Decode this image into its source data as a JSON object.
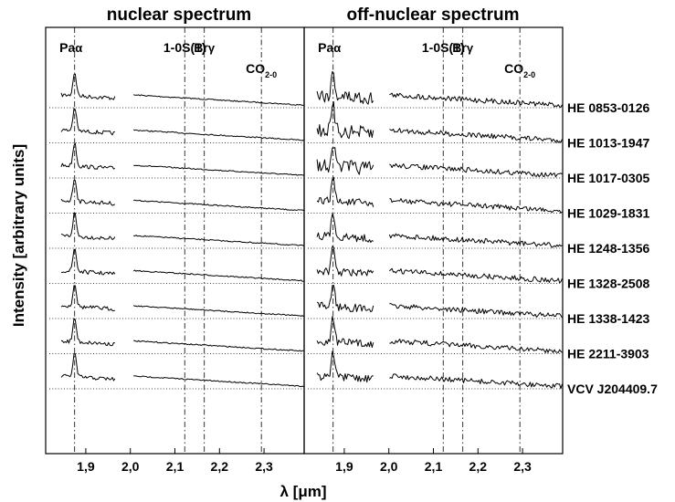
{
  "chart_data": {
    "type": "line",
    "panels": [
      {
        "title": "nuclear spectrum"
      },
      {
        "title": "off-nuclear spectrum"
      }
    ],
    "ylabel": "Intensity [arbitrary units]",
    "xlabel": "λ [μm]",
    "x_ticks": [
      "1,9",
      "2,0",
      "2,1",
      "2,2",
      "2,3"
    ],
    "x_tick_values": [
      1.9,
      2.0,
      2.1,
      2.2,
      2.3
    ],
    "xlim": [
      1.81,
      2.39
    ],
    "lines": [
      {
        "label": "Pa",
        "sub": "α",
        "x": 1.875
      },
      {
        "label": "1-0S(1)",
        "x": 2.122
      },
      {
        "label": "Br",
        "sub": "γ",
        "x": 2.166
      },
      {
        "label": "CO",
        "sub": "2-0",
        "x": 2.294
      }
    ],
    "series": [
      {
        "name": "HE 0853-0126"
      },
      {
        "name": "HE 1013-1947"
      },
      {
        "name": "HE 1017-0305"
      },
      {
        "name": "HE 1029-1831"
      },
      {
        "name": "HE 1248-1356"
      },
      {
        "name": "HE 1328-2508"
      },
      {
        "name": "HE 1338-1423"
      },
      {
        "name": "HE 2211-3903"
      },
      {
        "name": "VCV J204409.7"
      }
    ]
  }
}
